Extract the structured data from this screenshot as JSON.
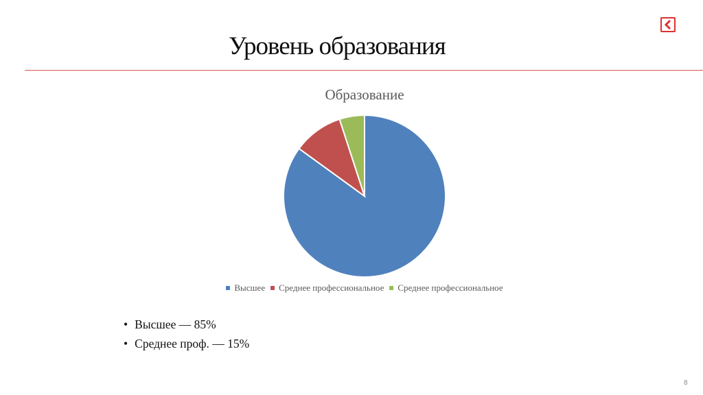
{
  "slide": {
    "title": "Уровень образования",
    "page_number": "8"
  },
  "colors": {
    "accent": "#d9534f",
    "logo": "#e03030"
  },
  "icons": {
    "logo": "back-arrow-logo-icon"
  },
  "bullets": [
    {
      "marker": "•",
      "text": "Высшее — 85%"
    },
    {
      "marker": "•",
      "text": "Среднее проф. — 15%"
    }
  ],
  "chart_data": {
    "type": "pie",
    "title": "Образование",
    "categories": [
      "Высшее",
      "Среднее профессиональное",
      "Среднее профессиональное"
    ],
    "values": [
      85,
      10,
      5
    ],
    "colors": [
      "#4f81bd",
      "#c0504d",
      "#9bbb59"
    ],
    "legend_position": "bottom",
    "start_angle_deg": 0,
    "direction": "clockwise"
  }
}
